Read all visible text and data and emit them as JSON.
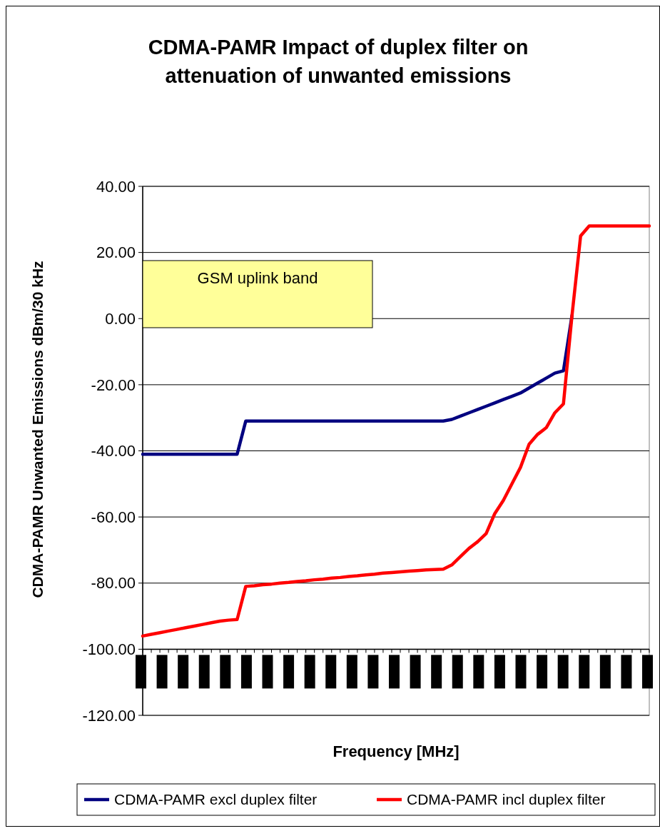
{
  "chart_data": {
    "type": "line",
    "title": "CDMA-PAMR Impact of duplex filter on attenuation of unwanted emissions",
    "xlabel": "Frequency [MHz]",
    "ylabel": "CDMA-PAMR Unwanted Emissions dBm/30 kHz",
    "annotations": [
      "GSM uplink band"
    ],
    "categories": [
      null,
      null,
      null,
      null,
      null,
      null,
      null,
      null,
      null,
      null,
      null,
      null,
      null,
      null,
      null,
      null,
      null,
      null,
      null,
      null,
      null,
      null,
      null,
      null,
      null,
      null,
      null,
      null,
      null,
      null,
      null,
      null,
      null,
      null,
      null,
      null,
      null,
      null,
      null,
      null,
      null,
      null,
      null,
      null,
      null,
      null,
      null,
      null,
      null,
      null,
      null,
      null,
      null,
      null,
      null,
      null,
      null,
      null,
      null,
      null
    ],
    "series": [
      {
        "name": "CDMA-PAMR excl duplex filter",
        "color": "#000080",
        "values": [
          -41,
          -41,
          -41,
          -41,
          -41,
          -41,
          -41,
          -41,
          -41,
          -41,
          -41,
          -41,
          -31,
          -31,
          -31,
          -31,
          -31,
          -31,
          -31,
          -31,
          -31,
          -31,
          -31,
          -31,
          -31,
          -31,
          -31,
          -31,
          -31,
          -31,
          -31,
          -31,
          -31,
          -31,
          -31,
          -31,
          -30.5,
          -29.5,
          -28.5,
          -27.5,
          -26.5,
          -25.5,
          -24.5,
          -23.5,
          -22.5,
          -21,
          -19.5,
          -18,
          -16.5,
          -15.8,
          1,
          null,
          null,
          null,
          null,
          null,
          null,
          null,
          null,
          null
        ]
      },
      {
        "name": "CDMA-PAMR incl duplex filter",
        "color": "#ff0000",
        "values": [
          -96,
          -95.5,
          -95,
          -94.5,
          -94,
          -93.5,
          -93,
          -92.5,
          -92,
          -91.5,
          -91.2,
          -91,
          -81,
          -80.8,
          -80.5,
          -80.3,
          -80,
          -79.8,
          -79.5,
          -79.3,
          -79,
          -78.8,
          -78.5,
          -78.3,
          -78,
          -77.8,
          -77.5,
          -77.3,
          -77,
          -76.8,
          -76.6,
          -76.4,
          -76.2,
          -76,
          -75.9,
          -75.8,
          -74.5,
          -72,
          -69.5,
          -67.5,
          -65,
          -59,
          -55,
          -50,
          -45,
          -38,
          -35,
          -33,
          -28.5,
          -25.8,
          1,
          25,
          28,
          28,
          28,
          28,
          28,
          28,
          28,
          28
        ]
      }
    ],
    "ylim": [
      -120,
      40
    ],
    "yticks": [
      {
        "value": -120,
        "label": "-120.00"
      },
      {
        "value": -100,
        "label": "-100.00"
      },
      {
        "value": -80,
        "label": "-80.00"
      },
      {
        "value": -60,
        "label": "-60.00"
      },
      {
        "value": -40,
        "label": "-40.00"
      },
      {
        "value": -20,
        "label": "-20.00"
      },
      {
        "value": 0,
        "label": "0.00"
      },
      {
        "value": 20,
        "label": "20.00"
      },
      {
        "value": 40,
        "label": "40.00"
      }
    ],
    "ref_lines": [
      {
        "axis": "y",
        "value": -100,
        "color": "#000000"
      }
    ],
    "grid": "y",
    "legend": "bottom",
    "marker": "none",
    "line_style": "solid"
  }
}
